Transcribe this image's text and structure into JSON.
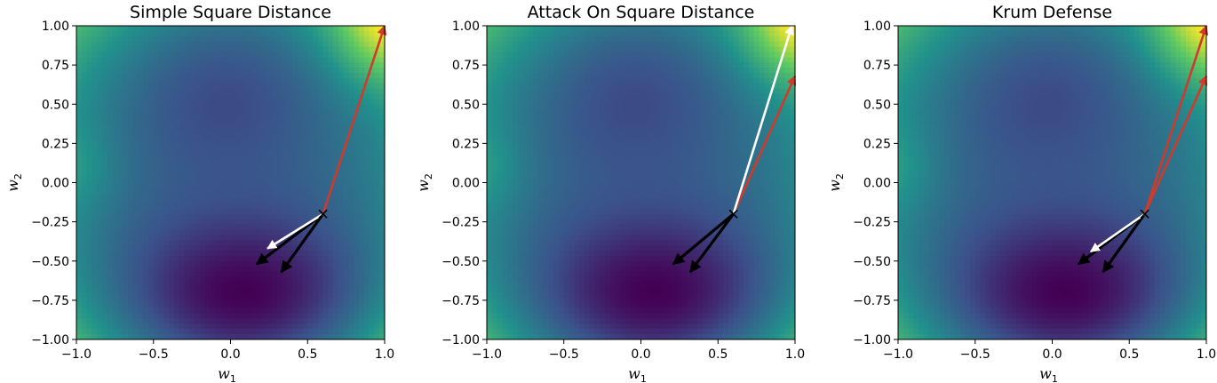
{
  "figure": {
    "colormap": [
      "#440154",
      "#3b528b",
      "#21918c",
      "#5ec962",
      "#fde725"
    ],
    "colors": {
      "malicious": "#d03a2a",
      "honest": "#000000",
      "aggregate": "#ffffff"
    }
  },
  "chart_data": [
    {
      "type": "heatmap",
      "title": "Simple Square Distance",
      "xlabel": "w",
      "xlabel_sub": "1",
      "ylabel": "w",
      "ylabel_sub": "2",
      "xlim": [
        -1.0,
        1.0
      ],
      "ylim": [
        -1.0,
        1.0
      ],
      "xticks": [
        "−1.0",
        "−0.5",
        "0.0",
        "0.5",
        "1.0"
      ],
      "yticks": [
        "−1.00",
        "−0.75",
        "−0.50",
        "−0.25",
        "0.00",
        "0.25",
        "0.50",
        "0.75",
        "1.00"
      ],
      "current_point": [
        0.6,
        -0.2
      ],
      "vectors": [
        {
          "role": "malicious",
          "to": [
            1.0,
            1.0
          ]
        },
        {
          "role": "honest",
          "to": [
            0.17,
            -0.52
          ]
        },
        {
          "role": "honest",
          "to": [
            0.33,
            -0.57
          ]
        },
        {
          "role": "aggregate",
          "to": [
            0.24,
            -0.42
          ]
        }
      ]
    },
    {
      "type": "heatmap",
      "title": "Attack On Square Distance",
      "xlabel": "w",
      "xlabel_sub": "1",
      "ylabel": "w",
      "ylabel_sub": "2",
      "xlim": [
        -1.0,
        1.0
      ],
      "ylim": [
        -1.0,
        1.0
      ],
      "xticks": [
        "−1.0",
        "−0.5",
        "0.0",
        "0.5",
        "1.0"
      ],
      "yticks": [
        "−1.00",
        "−0.75",
        "−0.50",
        "−0.25",
        "0.00",
        "0.25",
        "0.50",
        "0.75",
        "1.00"
      ],
      "current_point": [
        0.6,
        -0.2
      ],
      "vectors": [
        {
          "role": "malicious",
          "to": [
            1.0,
            0.68
          ]
        },
        {
          "role": "honest",
          "to": [
            0.21,
            -0.52
          ]
        },
        {
          "role": "honest",
          "to": [
            0.32,
            -0.57
          ]
        },
        {
          "role": "aggregate",
          "to": [
            0.98,
            1.0
          ]
        }
      ]
    },
    {
      "type": "heatmap",
      "title": "Krum Defense",
      "xlabel": "w",
      "xlabel_sub": "1",
      "ylabel": "w",
      "ylabel_sub": "2",
      "xlim": [
        -1.0,
        1.0
      ],
      "ylim": [
        -1.0,
        1.0
      ],
      "xticks": [
        "−1.0",
        "−0.5",
        "0.0",
        "0.5",
        "1.0"
      ],
      "yticks": [
        "−1.00",
        "−0.75",
        "−0.50",
        "−0.25",
        "0.00",
        "0.25",
        "0.50",
        "0.75",
        "1.00"
      ],
      "current_point": [
        0.6,
        -0.2
      ],
      "vectors": [
        {
          "role": "malicious",
          "to": [
            1.0,
            1.0
          ]
        },
        {
          "role": "malicious",
          "to": [
            1.0,
            0.68
          ]
        },
        {
          "role": "honest",
          "to": [
            0.17,
            -0.52
          ]
        },
        {
          "role": "honest",
          "to": [
            0.33,
            -0.57
          ]
        },
        {
          "role": "aggregate",
          "to": [
            0.25,
            -0.44
          ]
        }
      ]
    }
  ]
}
